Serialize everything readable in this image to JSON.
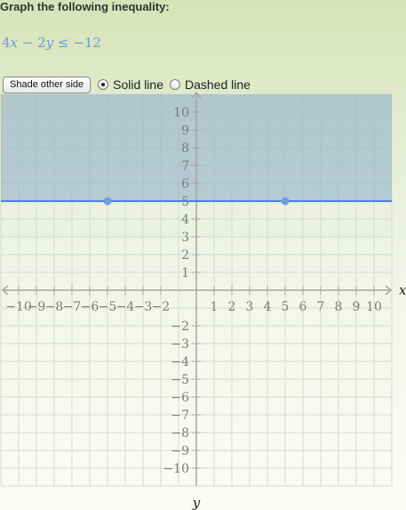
{
  "prompt": "Graph the following inequality:",
  "problem": {
    "coef_x": "4",
    "var_x": "x",
    "minus": " − ",
    "coef_y": "2",
    "var_y": "y",
    "relation": " ≤ ",
    "rhs": "−12"
  },
  "controls": {
    "shade_button": "Shade other side",
    "solid_label": "Solid line",
    "dashed_label": "Dashed line",
    "selected_line_style": "solid"
  },
  "chart_data": {
    "type": "line",
    "x_axis_label": "x",
    "y_axis_label": "y",
    "xlim": [
      -11,
      11
    ],
    "ylim": [
      -11,
      11
    ],
    "grid": true,
    "x_ticks": [
      -10,
      -9,
      -8,
      -7,
      -6,
      -5,
      -4,
      -3,
      -2,
      1,
      2,
      3,
      4,
      5,
      6,
      7,
      8,
      9,
      10
    ],
    "y_ticks": [
      -10,
      -9,
      -8,
      -7,
      -6,
      -5,
      -4,
      -3,
      -2,
      1,
      2,
      3,
      4,
      5,
      6,
      7,
      8,
      9,
      10
    ],
    "tick_labels_x": [
      "−10",
      "−9",
      "−8",
      "−7",
      "−6",
      "−5",
      "−4",
      "−3",
      "−2",
      "1",
      "2",
      "3",
      "4",
      "5",
      "6",
      "7",
      "8",
      "9",
      "10"
    ],
    "tick_labels_y": [
      "−10",
      "−9",
      "−8",
      "−7",
      "−6",
      "−5",
      "−4",
      "−3",
      "−2",
      "1",
      "2",
      "3",
      "4",
      "5",
      "6",
      "7",
      "8",
      "9",
      "10"
    ],
    "boundary_line": {
      "slope": 0,
      "intercept": 5,
      "style": "solid"
    },
    "control_points": [
      [
        -5,
        5
      ],
      [
        5,
        5
      ]
    ],
    "shaded_region": "above",
    "colors": {
      "line": "#4a7fe0",
      "point": "#6e9ee8",
      "shade": "#7fa6c9",
      "grid": "#d3dccb",
      "axis": "#a5a5a5",
      "tick_text": "#7b7b7b"
    }
  }
}
